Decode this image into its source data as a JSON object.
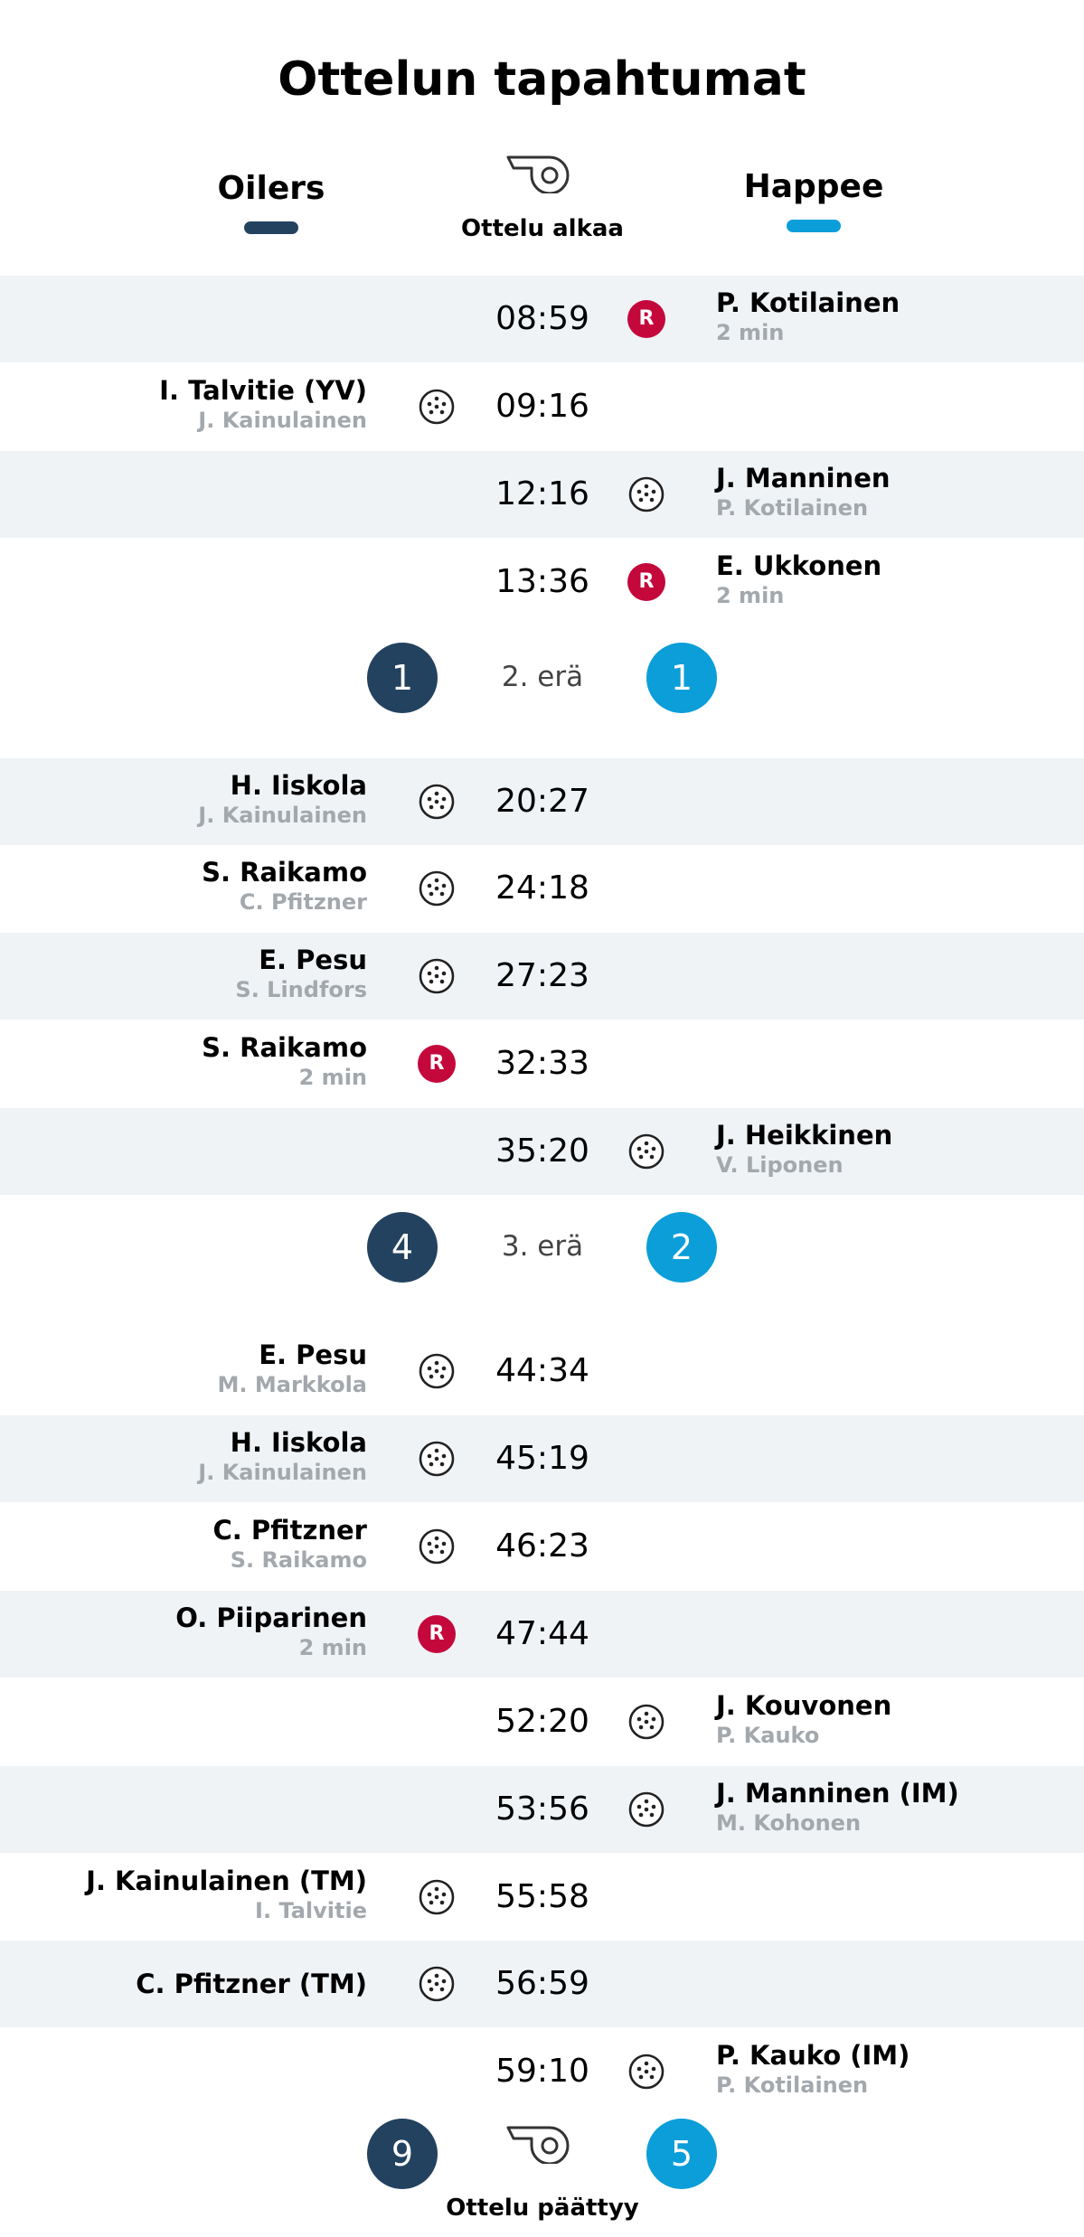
{
  "title": "Ottelun tapahtumat",
  "teams": {
    "home": {
      "name": "Oilers",
      "color": "#23425f"
    },
    "away": {
      "name": "Happee",
      "color": "#0b9ed8"
    }
  },
  "start_label": "Ottelu alkaa",
  "end_label": "Ottelu päättyy",
  "final_score": {
    "home": "9",
    "away": "5"
  },
  "colors": {
    "row_shade": "#eff3f6",
    "penalty": "#c4083c",
    "assist": "#a3a8ad"
  },
  "periods": [
    {
      "label": "",
      "events": [
        {
          "time": "08:59",
          "side": "away",
          "type": "penalty",
          "player": "P. Kotilainen",
          "detail": "2 min"
        },
        {
          "time": "09:16",
          "side": "home",
          "type": "goal",
          "player": "I. Talvitie (YV)",
          "detail": "J. Kainulainen"
        },
        {
          "time": "12:16",
          "side": "away",
          "type": "goal",
          "player": "J. Manninen",
          "detail": "P. Kotilainen"
        },
        {
          "time": "13:36",
          "side": "away",
          "type": "penalty",
          "player": "E. Ukkonen",
          "detail": "2 min"
        }
      ]
    },
    {
      "label": "2. erä",
      "score": {
        "home": "1",
        "away": "1"
      },
      "events": [
        {
          "time": "20:27",
          "side": "home",
          "type": "goal",
          "player": "H. Iiskola",
          "detail": "J. Kainulainen"
        },
        {
          "time": "24:18",
          "side": "home",
          "type": "goal",
          "player": "S. Raikamo",
          "detail": "C. Pfitzner"
        },
        {
          "time": "27:23",
          "side": "home",
          "type": "goal",
          "player": "E. Pesu",
          "detail": "S. Lindfors"
        },
        {
          "time": "32:33",
          "side": "home",
          "type": "penalty",
          "player": "S. Raikamo",
          "detail": "2 min"
        },
        {
          "time": "35:20",
          "side": "away",
          "type": "goal",
          "player": "J. Heikkinen",
          "detail": "V. Liponen"
        }
      ]
    },
    {
      "label": "3. erä",
      "score": {
        "home": "4",
        "away": "2"
      },
      "events": [
        {
          "time": "44:34",
          "side": "home",
          "type": "goal",
          "player": "E. Pesu",
          "detail": "M. Markkola"
        },
        {
          "time": "45:19",
          "side": "home",
          "type": "goal",
          "player": "H. Iiskola",
          "detail": "J. Kainulainen"
        },
        {
          "time": "46:23",
          "side": "home",
          "type": "goal",
          "player": "C. Pfitzner",
          "detail": "S. Raikamo"
        },
        {
          "time": "47:44",
          "side": "home",
          "type": "penalty",
          "player": "O. Piiparinen",
          "detail": "2 min"
        },
        {
          "time": "52:20",
          "side": "away",
          "type": "goal",
          "player": "J. Kouvonen",
          "detail": "P. Kauko"
        },
        {
          "time": "53:56",
          "side": "away",
          "type": "goal",
          "player": "J. Manninen (IM)",
          "detail": "M. Kohonen"
        },
        {
          "time": "55:58",
          "side": "home",
          "type": "goal",
          "player": "J. Kainulainen (TM)",
          "detail": "I. Talvitie"
        },
        {
          "time": "56:59",
          "side": "home",
          "type": "goal",
          "player": "C. Pfitzner (TM)",
          "detail": ""
        },
        {
          "time": "59:10",
          "side": "away",
          "type": "goal",
          "player": "P. Kauko (IM)",
          "detail": "P. Kotilainen"
        }
      ]
    }
  ]
}
